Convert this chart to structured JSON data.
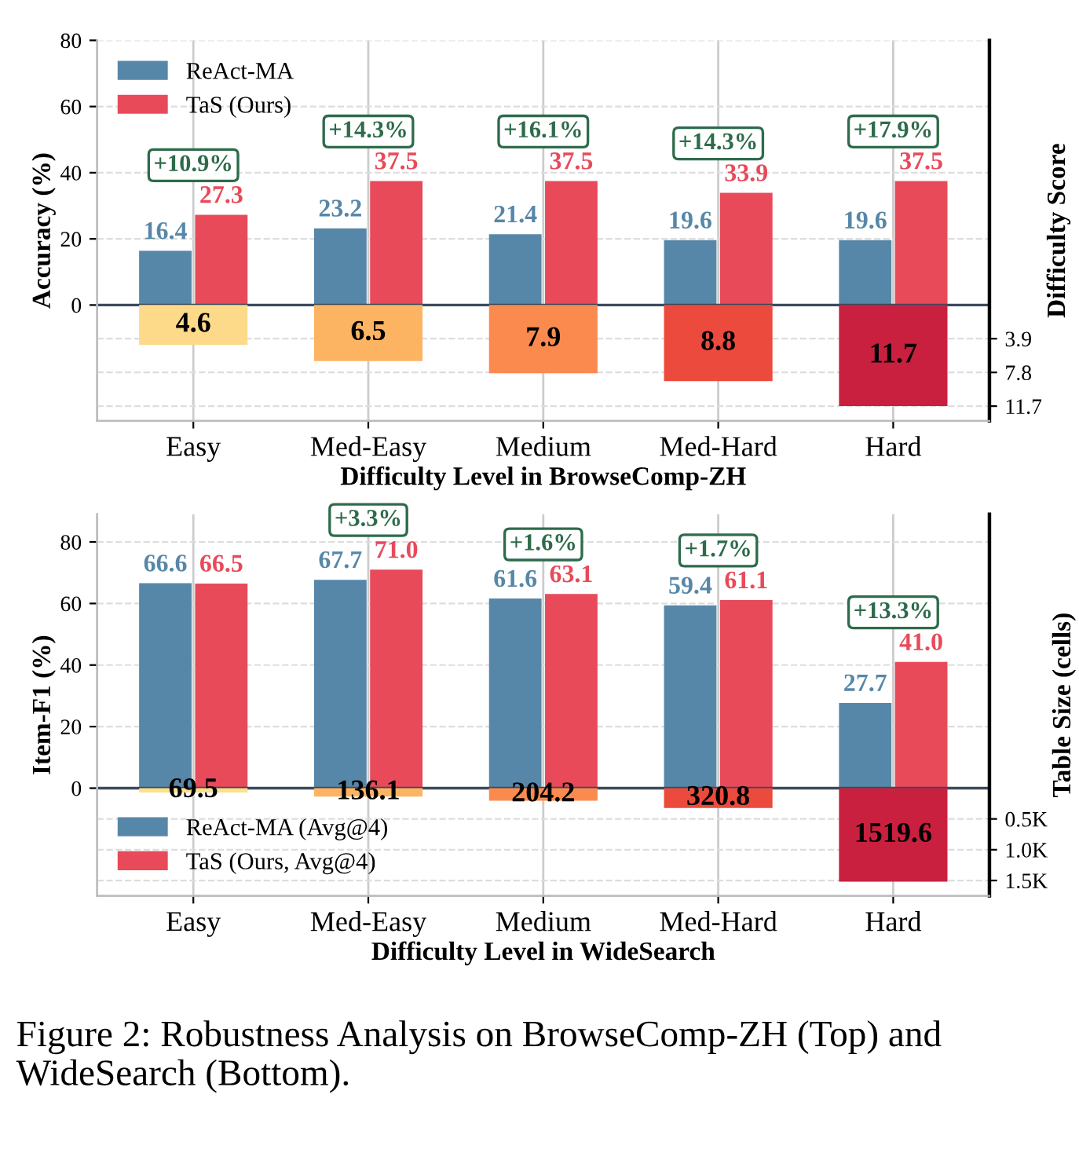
{
  "chart_data": [
    {
      "type": "bar",
      "categories": [
        "Easy",
        "Med-Easy",
        "Medium",
        "Med-Hard",
        "Hard"
      ],
      "xlabel": "Difficulty Level in BrowseComp-ZH",
      "ylabel": "Accuracy (%)",
      "y2label": "Difficulty Score",
      "series": [
        {
          "name": "ReAct-MA",
          "color": "#5787a8",
          "values": [
            16.4,
            23.2,
            21.4,
            19.6,
            19.6
          ]
        },
        {
          "name": "TaS (Ours)",
          "color": "#e84a5a",
          "values": [
            27.3,
            37.5,
            37.5,
            33.9,
            37.5
          ]
        },
        {
          "axis": "y2",
          "colors": [
            "#fdd98a",
            "#fdb462",
            "#fb8a4f",
            "#ec4a3c",
            "#c9203f"
          ],
          "values": [
            4.6,
            6.5,
            7.9,
            8.8,
            11.7
          ]
        }
      ],
      "ylim": [
        -35,
        80
      ],
      "yticks": [
        0,
        20,
        40,
        60,
        80
      ],
      "y2lim": [
        13.4,
        -30.6
      ],
      "y2ticks": [
        3.9,
        7.8,
        11.7
      ],
      "ref_lines": [
        {
          "axis": "y",
          "value": 0,
          "color": "#3a4a5c"
        }
      ],
      "annotations": [
        "+10.9%",
        "+14.3%",
        "+16.1%",
        "+14.3%",
        "+17.9%"
      ],
      "data_labels": true,
      "grid": true,
      "legend": "top left"
    },
    {
      "type": "bar",
      "categories": [
        "Easy",
        "Med-Easy",
        "Medium",
        "Med-Hard",
        "Hard"
      ],
      "xlabel": "Difficulty Level in WideSearch",
      "ylabel": "Item-F1 (%)",
      "y2label": "Table Size (cells)",
      "series": [
        {
          "name": "ReAct-MA (Avg@4)",
          "color": "#5787a8",
          "values": [
            66.6,
            67.7,
            61.6,
            59.4,
            27.7
          ]
        },
        {
          "name": "TaS (Ours, Avg@4)",
          "color": "#e84a5a",
          "values": [
            66.5,
            71.0,
            63.1,
            61.1,
            41.0
          ],
          "value_labels": [
            "66.5",
            "71.0",
            "63.1",
            "61.1",
            "41.0"
          ]
        },
        {
          "axis": "y2",
          "colors": [
            "#fde08a",
            "#fdb462",
            "#fb8a4f",
            "#ec4a3c",
            "#c9203f"
          ],
          "values": [
            69.5,
            136.1,
            204.2,
            320.8,
            1519.6
          ]
        }
      ],
      "ylim": [
        -35,
        89
      ],
      "yticks": [
        0,
        20,
        40,
        60,
        80
      ],
      "y2lim": [
        1750,
        -4450
      ],
      "y2ticks": [
        {
          "value": 500,
          "label": "0.5K"
        },
        {
          "value": 1000,
          "label": "1.0K"
        },
        {
          "value": 1500,
          "label": "1.5K"
        }
      ],
      "ref_lines": [
        {
          "axis": "y",
          "value": 0,
          "color": "#3a4a5c"
        }
      ],
      "annotations": [
        "+3.3%",
        "+1.6%",
        "+1.7%",
        "+13.3%",
        "Figure 2: Robustness Analysis on BrowseComp-ZH (Top) and WideSearch (Bottom)."
      ],
      "data_labels": true,
      "grid": true,
      "legend": "bottom left"
    }
  ]
}
